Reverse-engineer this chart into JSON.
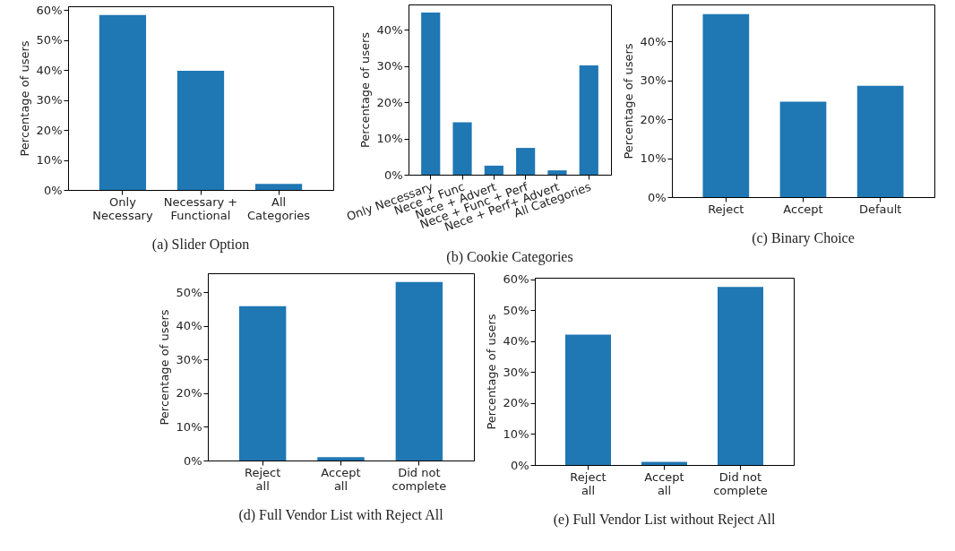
{
  "chart_data": [
    {
      "type": "bar",
      "title": "(a)  Slider Option",
      "ylabel": "Percentage of users",
      "categories": [
        "Only Necessary",
        "Necessary + Functional",
        "All Categories"
      ],
      "values": [
        58.4,
        39.8,
        2.0
      ],
      "color": "#1f77b4",
      "ylim": [
        0,
        61.3
      ],
      "yticks": [
        {
          "value": 0,
          "label": "0%"
        },
        {
          "value": 10,
          "label": "10%"
        },
        {
          "value": 20,
          "label": "20%"
        },
        {
          "value": 30,
          "label": "30%"
        },
        {
          "value": 40,
          "label": "40%"
        },
        {
          "value": 50,
          "label": "50%"
        },
        {
          "value": 60,
          "label": "60%"
        }
      ]
    },
    {
      "type": "bar",
      "title": "(b)  Cookie Categories",
      "ylabel": "Percentage of users",
      "categories": [
        "Only Necessary",
        "Nece + Func",
        "Nece + Advert",
        "Nece + Func + Perf",
        "Nece + Perf+ Advert",
        "All Categories"
      ],
      "values": [
        44.8,
        14.5,
        2.5,
        7.4,
        1.2,
        30.2
      ],
      "color": "#1f77b4",
      "ylim": [
        0,
        47
      ],
      "yticks": [
        {
          "value": 0,
          "label": "0%"
        },
        {
          "value": 10,
          "label": "10%"
        },
        {
          "value": 20,
          "label": "20%"
        },
        {
          "value": 30,
          "label": "30%"
        },
        {
          "value": 40,
          "label": "40%"
        }
      ]
    },
    {
      "type": "bar",
      "title": "(c)  Binary Choice",
      "ylabel": "Percentage of users",
      "categories": [
        "Reject",
        "Accept",
        "Default"
      ],
      "values": [
        47.0,
        24.5,
        28.6
      ],
      "color": "#1f77b4",
      "ylim": [
        0,
        49.5
      ],
      "yticks": [
        {
          "value": 0,
          "label": "0%"
        },
        {
          "value": 10,
          "label": "10%"
        },
        {
          "value": 20,
          "label": "20%"
        },
        {
          "value": 30,
          "label": "30%"
        },
        {
          "value": 40,
          "label": "40%"
        }
      ]
    },
    {
      "type": "bar",
      "title": "(d)  Full Vendor List with Reject All",
      "ylabel": "Percentage of users",
      "categories": [
        "Reject all",
        "Accept all",
        "Did not complete"
      ],
      "values": [
        45.9,
        1.0,
        53.1
      ],
      "color": "#1f77b4",
      "ylim": [
        0,
        55.7
      ],
      "yticks": [
        {
          "value": 0,
          "label": "0%"
        },
        {
          "value": 10,
          "label": "10%"
        },
        {
          "value": 20,
          "label": "20%"
        },
        {
          "value": 30,
          "label": "30%"
        },
        {
          "value": 40,
          "label": "40%"
        },
        {
          "value": 50,
          "label": "50%"
        }
      ]
    },
    {
      "type": "bar",
      "title": "(e)  Full Vendor List without Reject All",
      "ylabel": "Percentage of users",
      "categories": [
        "Reject all",
        "Accept all",
        "Did not complete"
      ],
      "values": [
        42.1,
        1.0,
        57.5
      ],
      "color": "#1f77b4",
      "ylim": [
        0,
        60.5
      ],
      "yticks": [
        {
          "value": 0,
          "label": "0%"
        },
        {
          "value": 10,
          "label": "10%"
        },
        {
          "value": 20,
          "label": "20%"
        },
        {
          "value": 30,
          "label": "30%"
        },
        {
          "value": 40,
          "label": "40%"
        },
        {
          "value": 50,
          "label": "50%"
        },
        {
          "value": 60,
          "label": "60%"
        }
      ]
    }
  ]
}
